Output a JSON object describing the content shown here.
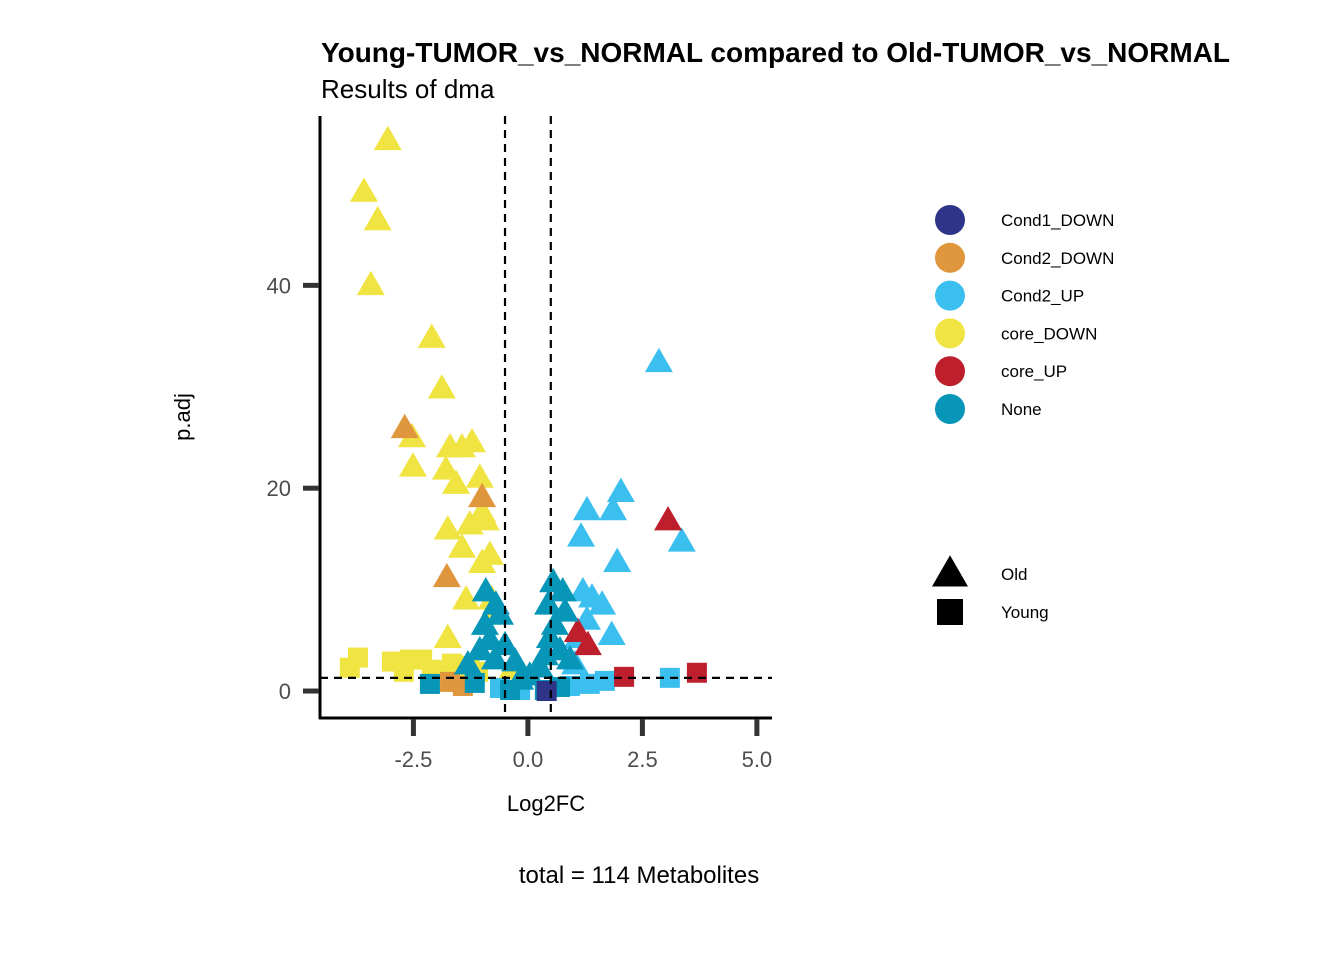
{
  "chart_data": {
    "type": "scatter",
    "title": "Young-TUMOR_vs_NORMAL compared to Old-TUMOR_vs_NORMAL",
    "subtitle": "Results of dma",
    "xlabel": "Log2FC",
    "ylabel": "p.adj",
    "caption": "total = 114 Metabolites",
    "xlim": [
      -4.54,
      5.33
    ],
    "ylim": [
      -2.66,
      56.7
    ],
    "xticks": [
      -2.5,
      0.0,
      2.5,
      5.0
    ],
    "xtick_labels": [
      "-2.5",
      "0.0",
      "2.5",
      "5.0"
    ],
    "yticks": [
      0,
      20,
      40
    ],
    "ytick_labels": [
      "0",
      "20",
      "40"
    ],
    "thresholds": {
      "vlines": [
        -0.5,
        0.5
      ],
      "hline": 1.3
    },
    "grid": false,
    "legend_placement": "right",
    "color_legend": [
      {
        "label": "Cond1_DOWN",
        "color": "#2e3589"
      },
      {
        "label": "Cond2_DOWN",
        "color": "#e0963c"
      },
      {
        "label": "Cond2_UP",
        "color": "#3bbfef"
      },
      {
        "label": "core_DOWN",
        "color": "#f0e442"
      },
      {
        "label": "core_UP",
        "color": "#bd1f2d"
      },
      {
        "label": "None",
        "color": "#0795b8"
      }
    ],
    "shape_legend": [
      {
        "label": "Old",
        "shape": "triangle"
      },
      {
        "label": "Young",
        "shape": "square"
      }
    ],
    "series": [
      {
        "name": "core_DOWN",
        "shape": "triangle",
        "points": [
          [
            -3.06,
            54.3
          ],
          [
            -3.58,
            49.2
          ],
          [
            -3.28,
            46.4
          ],
          [
            -3.43,
            40.0
          ],
          [
            -2.1,
            34.8
          ],
          [
            -1.88,
            29.8
          ],
          [
            -2.53,
            25.0
          ],
          [
            -2.51,
            22.1
          ],
          [
            -1.7,
            24.0
          ],
          [
            -1.44,
            24.0
          ],
          [
            -1.22,
            24.5
          ],
          [
            -1.79,
            21.8
          ],
          [
            -1.57,
            20.4
          ],
          [
            -1.05,
            21.0
          ],
          [
            -1.0,
            17.6
          ],
          [
            -1.75,
            15.9
          ],
          [
            -1.27,
            16.4
          ],
          [
            -0.92,
            16.8
          ],
          [
            -1.44,
            14.1
          ],
          [
            -0.83,
            13.4
          ],
          [
            -1.0,
            12.6
          ],
          [
            -1.35,
            9.0
          ],
          [
            -1.75,
            5.2
          ],
          [
            -0.79,
            9.0
          ],
          [
            -0.66,
            7.8
          ],
          [
            -0.35,
            2.1
          ]
        ]
      },
      {
        "name": "core_DOWN",
        "shape": "square",
        "points": [
          [
            -3.89,
            2.3
          ],
          [
            -3.71,
            3.3
          ],
          [
            -2.97,
            2.9
          ],
          [
            -2.71,
            1.9
          ],
          [
            -2.58,
            3.1
          ],
          [
            -2.31,
            3.1
          ],
          [
            -2.1,
            2.1
          ],
          [
            -1.92,
            1.5
          ],
          [
            -1.66,
            2.7
          ],
          [
            -1.44,
            2.3
          ],
          [
            -1.27,
            2.5
          ],
          [
            -1.09,
            1.9
          ]
        ]
      },
      {
        "name": "Cond2_DOWN",
        "shape": "triangle",
        "points": [
          [
            -2.69,
            25.9
          ],
          [
            -1.0,
            19.1
          ],
          [
            -1.77,
            11.2
          ]
        ]
      },
      {
        "name": "Cond2_DOWN",
        "shape": "square",
        "points": [
          [
            -1.42,
            0.5
          ],
          [
            -1.7,
            0.9
          ]
        ]
      },
      {
        "name": "Cond2_UP",
        "shape": "triangle",
        "points": [
          [
            2.86,
            32.4
          ],
          [
            2.03,
            19.6
          ],
          [
            1.29,
            17.8
          ],
          [
            1.86,
            17.8
          ],
          [
            1.16,
            15.2
          ],
          [
            3.36,
            14.7
          ],
          [
            1.95,
            12.7
          ],
          [
            1.2,
            9.8
          ],
          [
            1.4,
            9.2
          ],
          [
            1.62,
            8.5
          ],
          [
            1.29,
            7.0
          ],
          [
            1.09,
            5.2
          ],
          [
            1.83,
            5.5
          ],
          [
            1.03,
            2.6
          ]
        ]
      },
      {
        "name": "Cond2_UP",
        "shape": "square",
        "points": [
          [
            3.1,
            1.3
          ],
          [
            1.68,
            1.0
          ],
          [
            1.35,
            0.7
          ],
          [
            0.92,
            0.5
          ],
          [
            -0.61,
            0.3
          ],
          [
            -0.17,
            0.1
          ]
        ]
      },
      {
        "name": "core_UP",
        "shape": "triangle",
        "points": [
          [
            3.06,
            16.8
          ],
          [
            1.31,
            4.5
          ],
          [
            1.09,
            5.8
          ]
        ]
      },
      {
        "name": "core_UP",
        "shape": "square",
        "points": [
          [
            2.1,
            1.4
          ],
          [
            3.69,
            1.8
          ]
        ]
      },
      {
        "name": "None",
        "shape": "triangle",
        "points": [
          [
            -0.92,
            9.8
          ],
          [
            -0.7,
            8.5
          ],
          [
            -0.61,
            7.5
          ],
          [
            -0.94,
            6.5
          ],
          [
            -0.83,
            5.0
          ],
          [
            -0.5,
            4.5
          ],
          [
            -1.05,
            4.0
          ],
          [
            -0.72,
            3.1
          ],
          [
            -0.28,
            2.9
          ],
          [
            -1.31,
            2.6
          ],
          [
            0.55,
            10.7
          ],
          [
            0.76,
            9.8
          ],
          [
            0.44,
            8.5
          ],
          [
            0.81,
            7.8
          ],
          [
            0.59,
            6.5
          ],
          [
            0.48,
            5.2
          ],
          [
            0.7,
            4.0
          ],
          [
            0.37,
            3.5
          ],
          [
            0.26,
            2.3
          ],
          [
            0.92,
            3.1
          ],
          [
            0.04,
            1.5
          ],
          [
            -0.17,
            1.1
          ]
        ]
      },
      {
        "name": "None",
        "shape": "square",
        "points": [
          [
            -2.14,
            0.7
          ],
          [
            -1.16,
            0.8
          ],
          [
            -0.39,
            0.1
          ],
          [
            0.37,
            0.1
          ],
          [
            0.7,
            0.4
          ]
        ]
      },
      {
        "name": "Cond1_DOWN",
        "shape": "square",
        "points": [
          [
            0.41,
            0.0
          ]
        ]
      }
    ]
  }
}
